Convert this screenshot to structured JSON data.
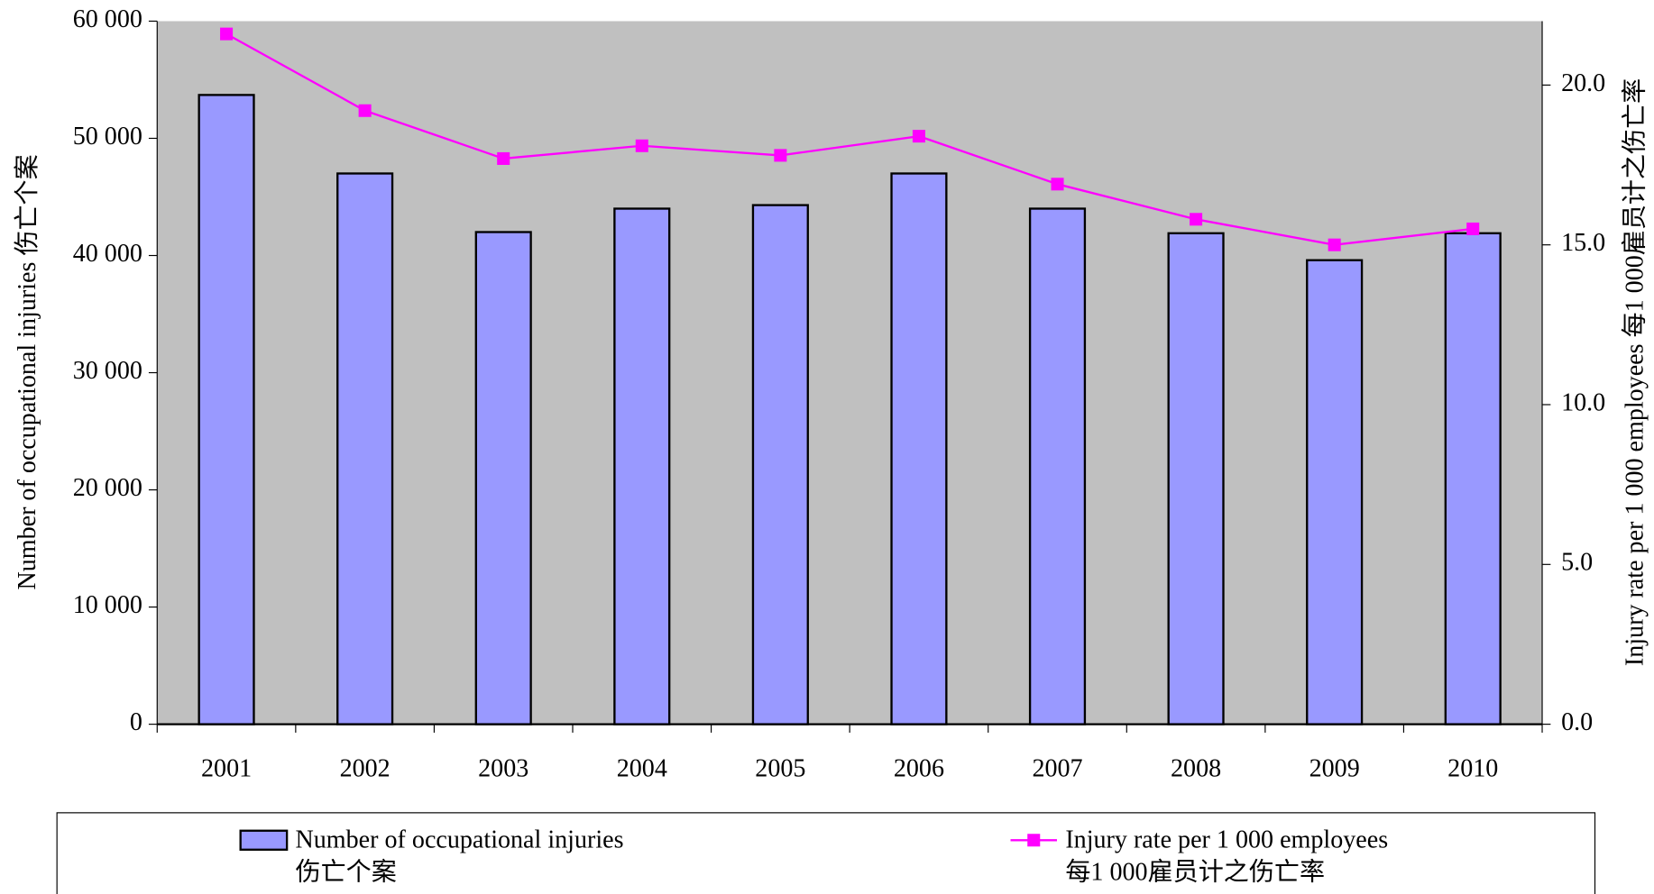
{
  "chart_data": {
    "type": "bar_line",
    "categories": [
      "2001",
      "2002",
      "2003",
      "2004",
      "2005",
      "2006",
      "2007",
      "2008",
      "2009",
      "2010"
    ],
    "series": [
      {
        "name": "Number of occupational injuries\n伤亡个案",
        "type": "bar",
        "color": "#9999ff",
        "axis": "y",
        "values": [
          53700,
          47000,
          42000,
          44000,
          44300,
          47000,
          44000,
          41900,
          39600,
          41900
        ]
      },
      {
        "name": "Injury rate per 1 000 employees\n每1 000雇员计之伤亡率",
        "type": "line",
        "color": "#ff00ff",
        "axis": "y2",
        "values": [
          21.6,
          19.2,
          17.7,
          18.1,
          17.8,
          18.4,
          16.9,
          15.8,
          15.0,
          15.5
        ]
      }
    ],
    "ylabel": "Number of occupational injuries 伤亡个案",
    "y2label": "Injury rate per 1 000 employees 每1 000雇员计之伤亡率",
    "ylim": [
      0,
      60000
    ],
    "yticks": [
      0,
      {
        "value": 10000,
        "label": "10 000"
      },
      {
        "value": 20000,
        "label": "20 000"
      },
      {
        "value": 30000,
        "label": "30 000"
      },
      {
        "value": 40000,
        "label": "40 000"
      },
      {
        "value": 50000,
        "label": "50 000"
      },
      {
        "value": 60000,
        "label": "60 000"
      }
    ],
    "y2lim": [
      0,
      22
    ],
    "y2ticks": [
      {
        "value": 0,
        "label": "0.0"
      },
      {
        "value": 5,
        "label": "5.0"
      },
      {
        "value": 10,
        "label": "10.0"
      },
      {
        "value": 15,
        "label": "15.0"
      },
      {
        "value": 20,
        "label": "20.0"
      }
    ],
    "plot_background": "#c0c0c0",
    "legend": "bottom"
  }
}
